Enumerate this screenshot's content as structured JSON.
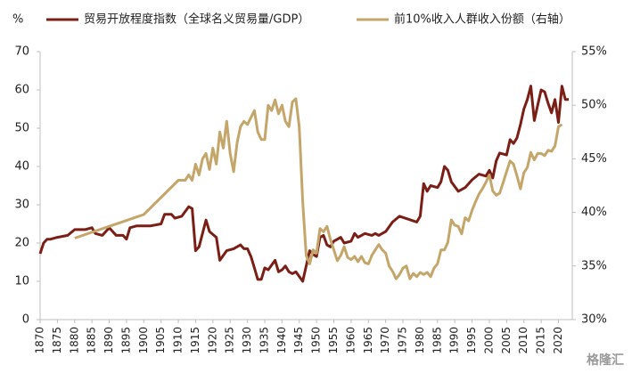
{
  "chart_data": {
    "type": "line",
    "y_label": "%",
    "watermark": "格隆汇",
    "xlim": [
      1870,
      2024
    ],
    "xticks": [
      1870,
      1875,
      1880,
      1885,
      1890,
      1895,
      1900,
      1905,
      1910,
      1915,
      1920,
      1925,
      1930,
      1935,
      1940,
      1945,
      1950,
      1955,
      1960,
      1965,
      1970,
      1975,
      1980,
      1985,
      1990,
      1995,
      2000,
      2005,
      2010,
      2015,
      2020
    ],
    "ylim": [
      0,
      70
    ],
    "yticks": [
      0,
      10,
      20,
      30,
      40,
      50,
      60,
      70
    ],
    "y2lim": [
      30,
      55
    ],
    "y2ticks": [
      {
        "value": 30,
        "label": "30%"
      },
      {
        "value": 35,
        "label": "35%"
      },
      {
        "value": 40,
        "label": "40%"
      },
      {
        "value": 45,
        "label": "45%"
      },
      {
        "value": 50,
        "label": "50%"
      },
      {
        "value": 55,
        "label": "55%"
      }
    ],
    "grid": false,
    "legend": "top",
    "series": [
      {
        "name": "贸易开放程度指数（全球名义贸易量/GDP）",
        "color": "#7b1f16",
        "x": [
          1870,
          1871,
          1872,
          1873,
          1875,
          1878,
          1880,
          1883,
          1885,
          1886,
          1888,
          1889,
          1890,
          1892,
          1894,
          1895,
          1896,
          1898,
          1900,
          1902,
          1905,
          1906,
          1908,
          1909,
          1911,
          1913,
          1914,
          1915,
          1916,
          1918,
          1919,
          1921,
          1922,
          1924,
          1926,
          1928,
          1929,
          1930,
          1931,
          1932,
          1933,
          1934,
          1935,
          1936,
          1938,
          1939,
          1940,
          1941,
          1942,
          1943,
          1944,
          1946,
          1947,
          1948,
          1949,
          1950,
          1951,
          1952,
          1953,
          1954,
          1955,
          1957,
          1958,
          1960,
          1961,
          1962,
          1964,
          1966,
          1967,
          1968,
          1970,
          1972,
          1974,
          1979,
          1980,
          1981,
          1982,
          1983,
          1985,
          1986,
          1987,
          1988,
          1989,
          1991,
          1993,
          1995,
          1997,
          1999,
          2000,
          2001,
          2002,
          2003,
          2005,
          2006,
          2007,
          2008,
          2009,
          2010,
          2011,
          2012,
          2013,
          2014,
          2015,
          2016,
          2017,
          2018,
          2019,
          2020,
          2021,
          2022,
          2023
        ],
        "values": [
          17.2,
          20,
          21,
          21,
          21.5,
          22,
          23.5,
          23.5,
          24,
          22.5,
          22,
          23,
          24,
          22,
          22,
          21,
          24,
          24.5,
          24.5,
          24.5,
          25,
          27.5,
          27.5,
          26.5,
          27,
          29.5,
          29,
          18,
          19,
          26,
          23,
          21.5,
          15.5,
          18,
          18.5,
          19.5,
          18.5,
          18.5,
          16.5,
          13.5,
          10.5,
          10.5,
          13.5,
          13,
          15.5,
          12.5,
          13,
          14,
          12.5,
          12,
          12.5,
          10,
          14,
          18,
          17,
          16.5,
          21.5,
          22,
          19.5,
          19,
          20.5,
          21.5,
          20,
          20.5,
          22.5,
          21.5,
          22.5,
          22,
          22.5,
          22,
          23,
          25.5,
          27,
          25.5,
          27,
          35.5,
          33.5,
          35,
          34.5,
          36,
          40,
          39,
          36,
          33.5,
          34.5,
          36.5,
          38,
          37.5,
          39,
          37,
          41.5,
          43.5,
          43,
          47,
          46,
          47.5,
          51,
          55,
          57.5,
          61,
          52,
          56,
          60,
          59.5,
          56.5,
          54,
          57.5,
          51.5,
          61,
          57.5,
          57.5
        ]
      },
      {
        "name": "前10%收入人群收入份额（右轴）",
        "color": "#c4a66a",
        "axis": "y2",
        "x": [
          1880,
          1900,
          1910,
          1912,
          1913,
          1914,
          1915,
          1916,
          1917,
          1918,
          1919,
          1920,
          1921,
          1922,
          1923,
          1924,
          1925,
          1926,
          1927,
          1928,
          1929,
          1930,
          1932,
          1933,
          1934,
          1935,
          1936,
          1937,
          1938,
          1939,
          1940,
          1941,
          1942,
          1943,
          1944,
          1945,
          1946,
          1947,
          1948,
          1949,
          1950,
          1951,
          1952,
          1953,
          1954,
          1955,
          1956,
          1957,
          1958,
          1959,
          1960,
          1961,
          1962,
          1963,
          1964,
          1965,
          1966,
          1967,
          1968,
          1969,
          1970,
          1971,
          1972,
          1973,
          1974,
          1975,
          1976,
          1977,
          1978,
          1979,
          1980,
          1981,
          1982,
          1983,
          1984,
          1985,
          1986,
          1987,
          1988,
          1989,
          1990,
          1991,
          1992,
          1993,
          1994,
          1995,
          1996,
          1997,
          1998,
          1999,
          2000,
          2001,
          2002,
          2003,
          2004,
          2005,
          2006,
          2007,
          2008,
          2009,
          2010,
          2011,
          2012,
          2013,
          2014,
          2015,
          2016,
          2017,
          2018,
          2019,
          2020,
          2021
        ],
        "values": [
          37.6,
          39.8,
          43,
          43,
          43.5,
          43,
          44.5,
          43.5,
          45,
          45.5,
          44,
          46,
          44.5,
          47.5,
          46,
          48.5,
          45.5,
          43.8,
          46.5,
          48,
          48.5,
          48.2,
          49.5,
          47.5,
          46.8,
          46.8,
          50,
          49.5,
          50.5,
          49.2,
          50,
          48.5,
          48,
          50.3,
          50.6,
          48,
          41,
          36,
          35.2,
          36.5,
          36.2,
          38.5,
          38.2,
          38.7,
          37.5,
          36.5,
          35.5,
          36,
          36.8,
          35.8,
          35.6,
          35.9,
          35.4,
          35.9,
          35.3,
          35.2,
          36,
          36.5,
          37,
          36.5,
          36.2,
          35,
          34.5,
          33.8,
          34.2,
          34.8,
          35,
          33.8,
          34.3,
          34,
          34.4,
          34.2,
          34.4,
          34,
          34.8,
          35.2,
          36.5,
          36.5,
          37.2,
          39.3,
          38.8,
          38.7,
          38,
          39.5,
          39.2,
          40.2,
          41,
          41.7,
          42.2,
          42.8,
          43.5,
          42,
          41.6,
          41.8,
          42.8,
          43.8,
          44.8,
          44.5,
          43.4,
          42.2,
          43.7,
          44.2,
          45.6,
          44.9,
          45.5,
          45.5,
          45.3,
          45.8,
          45.7,
          46.2,
          48,
          48.2
        ]
      }
    ]
  }
}
